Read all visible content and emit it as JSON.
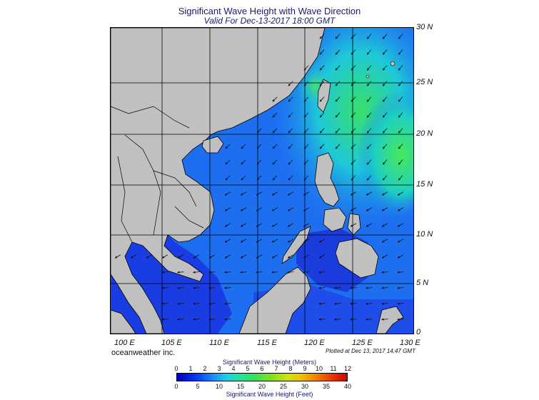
{
  "title": "Significant Wave Height with Wave Direction",
  "subtitle": "Valid For Dec-13-2017 18:00 GMT",
  "lon_labels": [
    "100 E",
    "105 E",
    "110 E",
    "115 E",
    "120 E",
    "125 E",
    "130 E"
  ],
  "lat_labels": [
    "30 N",
    "25 N",
    "20 N",
    "15 N",
    "10 N",
    "5 N",
    "0"
  ],
  "credit": "oceanweather inc.",
  "plotted": "Plotted at Dec 13, 2017 14:47 GMT",
  "colorbar": {
    "meters_title": "Significant Wave Height (Meters)",
    "feet_title": "Significant Wave Height (Feet)",
    "meters_ticks": [
      "0",
      "1",
      "2",
      "3",
      "4",
      "5",
      "6",
      "7",
      "8",
      "9",
      "10",
      "11",
      "12"
    ],
    "feet_ticks": [
      "0",
      "5",
      "10",
      "15",
      "20",
      "25",
      "30",
      "35",
      "40"
    ]
  },
  "colors": {
    "land": "#c0c0c0",
    "deep_blue": "#1f33e0",
    "mid_blue": "#1e6bf0",
    "cyan": "#1ec8e8",
    "green": "#3de87a"
  }
}
